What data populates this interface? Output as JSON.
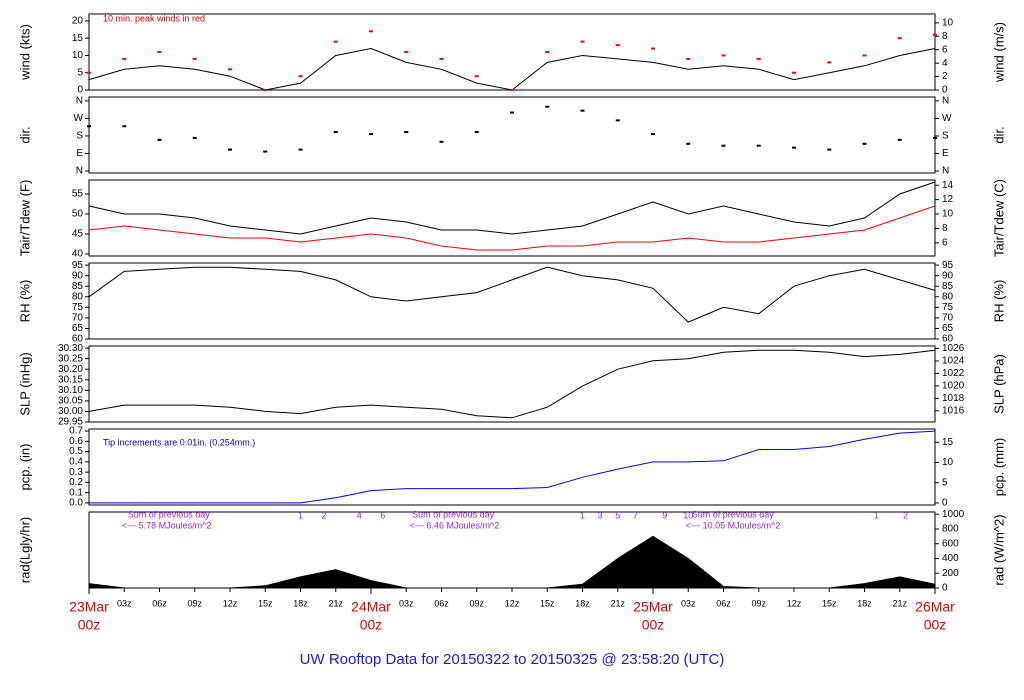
{
  "title": "UW Rooftop Data for 20150322  to  20150325 @ 23:58:20  (UTC)",
  "x_axis": {
    "xlim": [
      0,
      72
    ],
    "xticks": [
      {
        "value": 3,
        "label": "03z"
      },
      {
        "value": 6,
        "label": "06z"
      },
      {
        "value": 9,
        "label": "09z"
      },
      {
        "value": 12,
        "label": "12z"
      },
      {
        "value": 15,
        "label": "15z"
      },
      {
        "value": 18,
        "label": "18z"
      },
      {
        "value": 21,
        "label": "21z"
      },
      {
        "value": 27,
        "label": "03z"
      },
      {
        "value": 30,
        "label": "06z"
      },
      {
        "value": 33,
        "label": "09z"
      },
      {
        "value": 36,
        "label": "12z"
      },
      {
        "value": 39,
        "label": "15z"
      },
      {
        "value": 42,
        "label": "18z"
      },
      {
        "value": 45,
        "label": "21z"
      },
      {
        "value": 51,
        "label": "03z"
      },
      {
        "value": 54,
        "label": "06z"
      },
      {
        "value": 57,
        "label": "09z"
      },
      {
        "value": 60,
        "label": "12z"
      },
      {
        "value": 63,
        "label": "15z"
      },
      {
        "value": 66,
        "label": "18z"
      },
      {
        "value": 69,
        "label": "21z"
      }
    ],
    "day_ticks": [
      {
        "value": 0,
        "label": "23Mar",
        "sublabel": "00z"
      },
      {
        "value": 24,
        "label": "24Mar",
        "sublabel": "00z"
      },
      {
        "value": 48,
        "label": "25Mar",
        "sublabel": "00z"
      },
      {
        "value": 72,
        "label": "26Mar",
        "sublabel": "00z"
      }
    ]
  },
  "chart_data": [
    {
      "type": "line",
      "ylabel": "wind (kts)",
      "y2label": "wind (m/s)",
      "annotation": "10 min. peak winds in red",
      "ylim": [
        0,
        22
      ],
      "yticks": [
        0,
        5,
        10,
        15,
        20
      ],
      "y2lim": [
        0,
        11.32
      ],
      "y2ticks": [
        0,
        2,
        4,
        6,
        8,
        10
      ],
      "x": [
        0,
        3,
        6,
        9,
        12,
        15,
        18,
        21,
        24,
        27,
        30,
        33,
        36,
        39,
        42,
        45,
        48,
        51,
        54,
        57,
        60,
        63,
        66,
        69,
        72
      ],
      "series": [
        {
          "color": "#000000",
          "values": [
            3,
            6,
            7,
            6,
            4,
            0,
            2,
            10,
            12,
            8,
            6,
            2,
            0,
            8,
            10,
            9,
            8,
            6,
            7,
            6,
            3,
            5,
            7,
            10,
            12
          ]
        },
        {
          "color": "#ff0000",
          "style": "dots",
          "values": [
            5,
            9,
            11,
            9,
            6,
            0,
            4,
            14,
            17,
            11,
            9,
            4,
            0,
            11,
            14,
            13,
            12,
            9,
            10,
            9,
            5,
            8,
            10,
            15,
            16
          ]
        }
      ]
    },
    {
      "type": "scatter",
      "ylabel": "dir.",
      "y2label": "dir.",
      "ylim": [
        -10,
        380
      ],
      "yticks": [
        {
          "value": 0,
          "label": "N"
        },
        {
          "value": 90,
          "label": "E"
        },
        {
          "value": 180,
          "label": "S"
        },
        {
          "value": 270,
          "label": "W"
        },
        {
          "value": 360,
          "label": "N"
        }
      ],
      "y2lim": [
        -10,
        380
      ],
      "y2ticks": [
        {
          "value": 0,
          "label": "N"
        },
        {
          "value": 90,
          "label": "E"
        },
        {
          "value": 180,
          "label": "S"
        },
        {
          "value": 270,
          "label": "W"
        },
        {
          "value": 360,
          "label": "N"
        }
      ],
      "x": [
        0,
        3,
        6,
        9,
        12,
        15,
        18,
        21,
        24,
        27,
        30,
        33,
        36,
        39,
        42,
        45,
        48,
        51,
        54,
        57,
        60,
        63,
        66,
        69,
        72
      ],
      "series": [
        {
          "color": "#000000",
          "values": [
            230,
            230,
            160,
            170,
            110,
            100,
            110,
            200,
            190,
            200,
            150,
            200,
            300,
            330,
            310,
            260,
            190,
            140,
            130,
            130,
            120,
            110,
            140,
            160,
            170
          ]
        }
      ]
    },
    {
      "type": "line",
      "ylabel": "Tair/Tdew (F)",
      "y2label": "Tair/Tdew (C)",
      "ylim": [
        39.5,
        58.5
      ],
      "yticks": [
        40,
        45,
        50,
        55
      ],
      "y2lim": [
        4.17,
        14.72
      ],
      "y2ticks": [
        6,
        8,
        10,
        12,
        14
      ],
      "x": [
        0,
        3,
        6,
        9,
        12,
        15,
        18,
        21,
        24,
        27,
        30,
        33,
        36,
        39,
        42,
        45,
        48,
        51,
        54,
        57,
        60,
        63,
        66,
        69,
        72
      ],
      "series": [
        {
          "color": "#000000",
          "values": [
            52,
            50,
            50,
            49,
            47,
            46,
            45,
            47,
            49,
            48,
            46,
            46,
            45,
            46,
            47,
            50,
            53,
            50,
            52,
            50,
            48,
            47,
            49,
            55,
            58
          ]
        },
        {
          "color": "#ff0000",
          "values": [
            46,
            47,
            46,
            45,
            44,
            44,
            43,
            44,
            45,
            44,
            42,
            41,
            41,
            42,
            42,
            43,
            43,
            44,
            43,
            43,
            44,
            45,
            46,
            49,
            52
          ]
        }
      ]
    },
    {
      "type": "line",
      "ylabel": "RH (%)",
      "y2label": "RH (%)",
      "ylim": [
        60,
        96
      ],
      "yticks": [
        60,
        65,
        70,
        75,
        80,
        85,
        90,
        95
      ],
      "y2lim": [
        60,
        96
      ],
      "y2ticks": [
        60,
        65,
        70,
        75,
        80,
        85,
        90,
        95
      ],
      "x": [
        0,
        3,
        6,
        9,
        12,
        15,
        18,
        21,
        24,
        27,
        30,
        33,
        36,
        39,
        42,
        45,
        48,
        51,
        54,
        57,
        60,
        63,
        66,
        69,
        72
      ],
      "series": [
        {
          "color": "#000000",
          "values": [
            80,
            92,
            93,
            94,
            94,
            93,
            92,
            88,
            80,
            78,
            80,
            82,
            88,
            94,
            90,
            88,
            84,
            68,
            75,
            72,
            85,
            90,
            93,
            88,
            83
          ]
        }
      ]
    },
    {
      "type": "line",
      "ylabel": "SLP (inHg)",
      "y2label": "SLP (hPa)",
      "ylim": [
        29.95,
        30.31
      ],
      "yticks": [
        29.95,
        {
          "value": 30,
          "label": "30.00"
        },
        30.05,
        {
          "value": 30.1,
          "label": "30.10"
        },
        30.15,
        {
          "value": 30.2,
          "label": "30.20"
        },
        30.25,
        {
          "value": 30.3,
          "label": "30.30"
        }
      ],
      "y2lim": [
        1014.2,
        1026.4
      ],
      "y2ticks": [
        1016,
        1018,
        1020,
        1022,
        1024,
        1026
      ],
      "x": [
        0,
        3,
        6,
        9,
        12,
        15,
        18,
        21,
        24,
        27,
        30,
        33,
        36,
        39,
        42,
        45,
        48,
        51,
        54,
        57,
        60,
        63,
        66,
        69,
        72
      ],
      "series": [
        {
          "color": "#000000",
          "values": [
            30.0,
            30.03,
            30.03,
            30.03,
            30.02,
            30.0,
            29.99,
            30.02,
            30.03,
            30.02,
            30.01,
            29.98,
            29.97,
            30.02,
            30.12,
            30.2,
            30.24,
            30.25,
            30.28,
            30.29,
            30.29,
            30.28,
            30.26,
            30.27,
            30.29
          ]
        }
      ]
    },
    {
      "type": "line",
      "ylabel": "pcp. (in)",
      "y2label": "pcp. (mm)",
      "annotation": "Tip increments are 0.01in. (0.254mm.)",
      "ylim": [
        -0.02,
        0.72
      ],
      "yticks": [
        {
          "value": 0,
          "label": "0.0"
        },
        0.1,
        0.2,
        0.3,
        0.4,
        0.5,
        0.6,
        0.7
      ],
      "y2lim": [
        -0.51,
        18.29
      ],
      "y2ticks": [
        0,
        5,
        10,
        15
      ],
      "x": [
        0,
        3,
        6,
        9,
        12,
        15,
        18,
        21,
        24,
        27,
        30,
        33,
        36,
        39,
        42,
        45,
        48,
        51,
        54,
        57,
        60,
        63,
        66,
        69,
        72
      ],
      "series": [
        {
          "color": "#0000ff",
          "values": [
            0,
            0,
            0,
            0,
            0,
            0,
            0,
            0.05,
            0.12,
            0.14,
            0.14,
            0.14,
            0.14,
            0.15,
            0.25,
            0.33,
            0.4,
            0.4,
            0.41,
            0.52,
            0.52,
            0.55,
            0.62,
            0.68,
            0.7
          ]
        }
      ]
    },
    {
      "type": "area",
      "ylabel": "rad(Lgly/hr)",
      "y2label": "rad (W/m^2)",
      "ylim": [
        0,
        1030
      ],
      "y2lim": [
        0,
        1030
      ],
      "y2ticks": [
        0,
        200,
        400,
        600,
        800,
        1000
      ],
      "tip_labels": [
        "1",
        "2",
        "4",
        "6",
        "1",
        "3",
        "5",
        "7",
        "9",
        "10",
        "1",
        "2"
      ],
      "annotations": [
        [
          "Sum of previous day",
          "<--- 5.78 MJoules/m^2"
        ],
        [
          "Sum of previous day",
          "<--- 6.46 MJoules/m^2"
        ],
        [
          "Sum of previous day",
          "<--- 10.05 MJoules/m^2"
        ]
      ],
      "x": [
        0,
        3,
        6,
        9,
        12,
        15,
        18,
        21,
        24,
        27,
        30,
        33,
        36,
        39,
        42,
        45,
        48,
        51,
        54,
        57,
        60,
        63,
        66,
        69,
        72
      ],
      "series": [
        {
          "color": "#000000",
          "values": [
            60,
            0,
            0,
            0,
            0,
            30,
            150,
            250,
            100,
            0,
            0,
            0,
            0,
            0,
            50,
            400,
            700,
            400,
            20,
            0,
            0,
            0,
            60,
            150,
            50
          ]
        }
      ]
    }
  ]
}
